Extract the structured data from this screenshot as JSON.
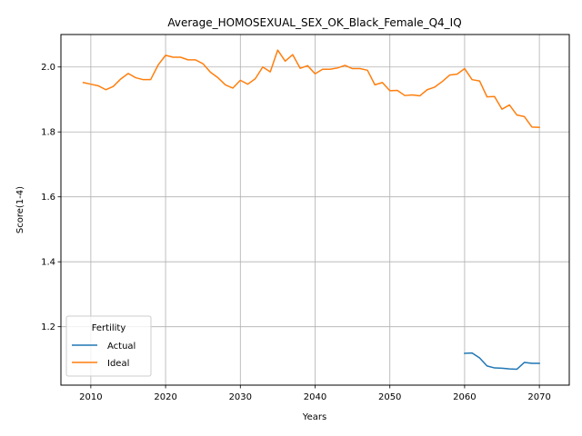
{
  "chart_data": {
    "type": "line",
    "title": "Average_HOMOSEXUAL_SEX_OK_Black_Female_Q4_IQ",
    "xlabel": "Years",
    "ylabel": "Score(1-4)",
    "xlim": [
      2006,
      2074
    ],
    "ylim": [
      1.02,
      2.1
    ],
    "xticks": [
      2010,
      2020,
      2030,
      2040,
      2050,
      2060,
      2070
    ],
    "yticks": [
      1.2,
      1.4,
      1.6,
      1.8,
      2.0
    ],
    "ytick_labels": [
      "1.2",
      "1.4",
      "1.6",
      "1.8",
      "2.0"
    ],
    "grid": true,
    "legend": {
      "title": "Fertility",
      "placement": "lower-left"
    },
    "series": [
      {
        "name": "Actual",
        "color": "#1f77b4",
        "x": [
          2060,
          2061,
          2062,
          2063,
          2064,
          2065,
          2066,
          2067,
          2068,
          2069,
          2070
        ],
        "y": [
          1.118,
          1.119,
          1.104,
          1.079,
          1.073,
          1.072,
          1.07,
          1.069,
          1.09,
          1.087,
          1.087
        ]
      },
      {
        "name": "Ideal",
        "color": "#ff7f0e",
        "x": [
          2009,
          2010,
          2011,
          2012,
          2013,
          2014,
          2015,
          2016,
          2017,
          2018,
          2019,
          2020,
          2021,
          2022,
          2023,
          2024,
          2025,
          2026,
          2027,
          2028,
          2029,
          2030,
          2031,
          2032,
          2033,
          2034,
          2035,
          2036,
          2037,
          2038,
          2039,
          2040,
          2041,
          2042,
          2043,
          2044,
          2045,
          2046,
          2047,
          2048,
          2049,
          2050,
          2051,
          2052,
          2053,
          2054,
          2055,
          2056,
          2057,
          2058,
          2059,
          2060,
          2061,
          2062,
          2063,
          2064,
          2065,
          2066,
          2067,
          2068,
          2069,
          2070
        ],
        "y": [
          1.952,
          1.947,
          1.942,
          1.93,
          1.94,
          1.963,
          1.98,
          1.967,
          1.961,
          1.961,
          2.006,
          2.036,
          2.03,
          2.03,
          2.022,
          2.022,
          2.01,
          1.984,
          1.967,
          1.945,
          1.935,
          1.959,
          1.947,
          1.964,
          2.0,
          1.985,
          2.052,
          2.018,
          2.038,
          1.996,
          2.004,
          1.979,
          1.993,
          1.993,
          1.997,
          2.005,
          1.995,
          1.995,
          1.99,
          1.945,
          1.952,
          1.927,
          1.928,
          1.912,
          1.914,
          1.911,
          1.93,
          1.938,
          1.955,
          1.975,
          1.978,
          1.995,
          1.961,
          1.957,
          1.908,
          1.909,
          1.87,
          1.883,
          1.852,
          1.847,
          1.815,
          1.814
        ]
      }
    ]
  }
}
